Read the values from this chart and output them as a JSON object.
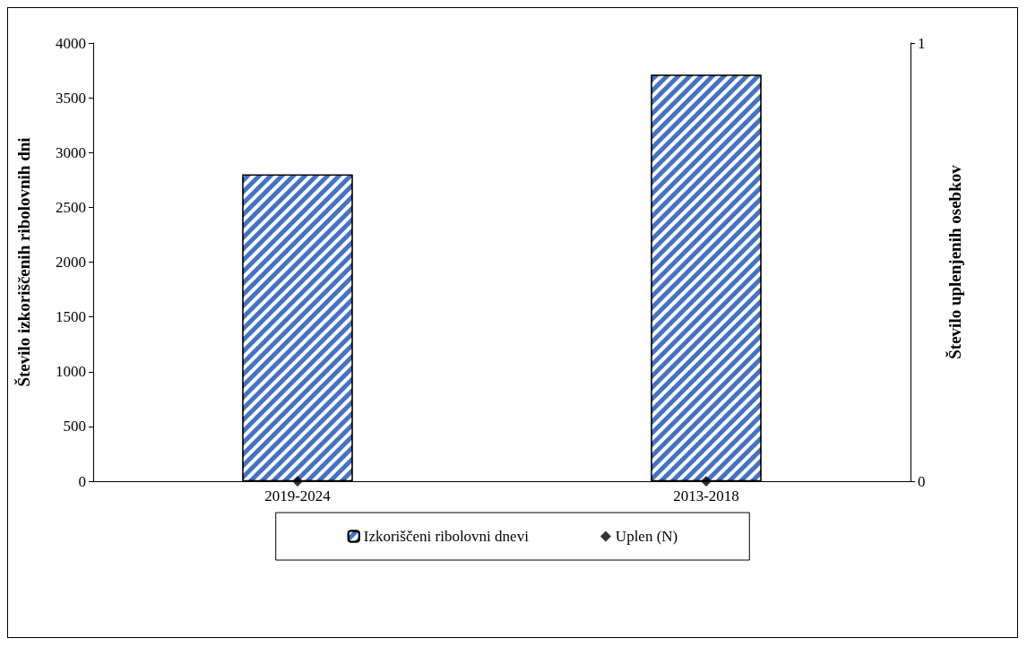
{
  "chart_data": {
    "type": "bar",
    "categories": [
      "2019-2024",
      "2013-2018"
    ],
    "series": [
      {
        "name": "Izkoriščeni ribolovni dnevi",
        "color": "#4472c4",
        "values": [
          2800,
          3710
        ]
      },
      {
        "name": "Uplen (N)",
        "type": "scatter",
        "color": "#000000",
        "values": [
          0,
          0
        ],
        "axis": "y2"
      }
    ],
    "ylabel": "Število izkoriščenih ribolovnih dni",
    "y2label": "Število uplenjenih osebkov",
    "ylim": [
      0,
      4000
    ],
    "yticks": [
      0,
      500,
      1000,
      1500,
      2000,
      2500,
      3000,
      3500,
      4000
    ],
    "y2lim": [
      0,
      1
    ],
    "y2ticks": [
      0,
      1
    ],
    "marker": "diamond",
    "grid": false,
    "legend": "bottom"
  }
}
